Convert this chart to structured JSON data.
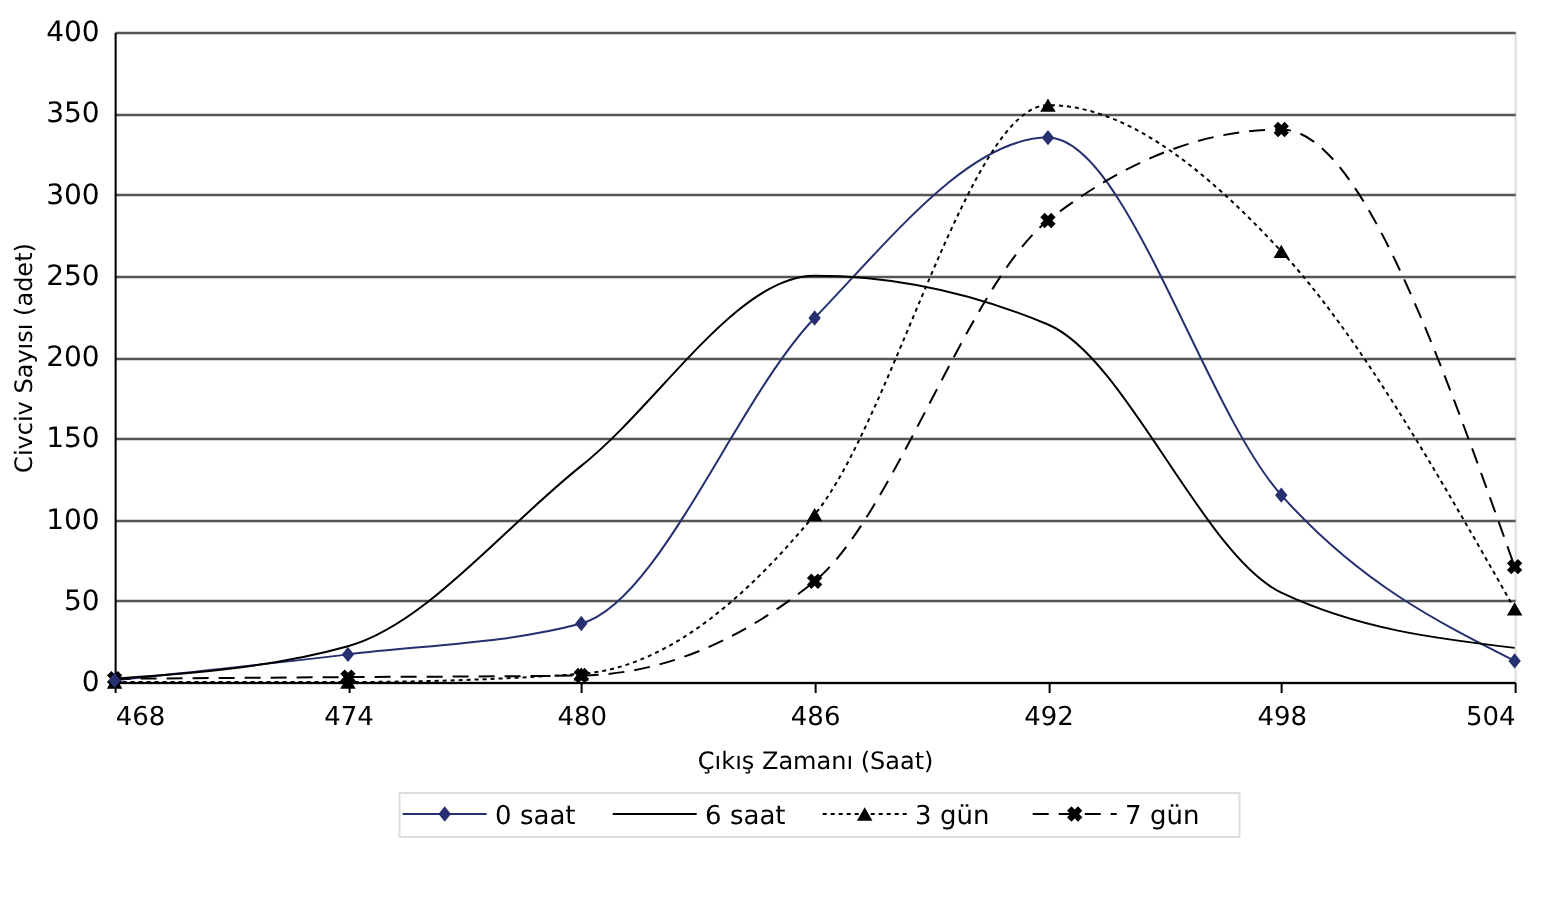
{
  "chart_data": {
    "type": "line",
    "xlabel": "Çıkış Zamanı (Saat)",
    "ylabel": "Civciv Sayısı (adet)",
    "x": [
      468,
      474,
      480,
      486,
      492,
      498,
      504
    ],
    "series": [
      {
        "name": "0 saat",
        "color": "#263070",
        "marker": "diamond",
        "line_style": "solid",
        "values": [
          1,
          17,
          36,
          224,
          335,
          115,
          13
        ]
      },
      {
        "name": "6 saat",
        "color": "#000000",
        "marker": "none",
        "line_style": "solid",
        "values": [
          2,
          22,
          133,
          250,
          220,
          55,
          21
        ]
      },
      {
        "name": "3 gün",
        "color": "#000000",
        "marker": "triangle",
        "line_style": "dotted",
        "values": [
          0,
          0,
          5,
          103,
          355,
          265,
          45
        ]
      },
      {
        "name": "7 gün",
        "color": "#000000",
        "marker": "cross",
        "line_style": "dashed",
        "values": [
          2,
          3,
          4,
          62,
          284,
          340,
          71
        ]
      }
    ],
    "xlim": [
      468,
      504
    ],
    "xticks": [
      468,
      474,
      480,
      486,
      492,
      498,
      504
    ],
    "ylim": [
      0,
      400
    ],
    "yticks": [
      0,
      50,
      100,
      150,
      200,
      250,
      300,
      350,
      400
    ],
    "grid": "y",
    "legend": "bottom"
  }
}
